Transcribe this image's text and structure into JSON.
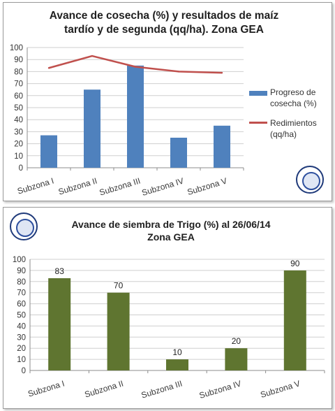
{
  "chart_data": [
    {
      "type": "bar",
      "title": "Avance de cosecha (%) y resultados de maíz tardío y de segunda (qq/ha). Zona GEA",
      "categories": [
        "Subzona I",
        "Subzona II",
        "Subzona III",
        "Subzona IV",
        "Subzona V"
      ],
      "series": [
        {
          "name": "Progreso de cosecha (%)",
          "type": "bar",
          "color": "#4f81bd",
          "values": [
            27,
            65,
            85,
            25,
            35
          ]
        },
        {
          "name": "Redimientos (qq/ha)",
          "type": "line",
          "color": "#c0504d",
          "values": [
            83,
            93,
            84,
            80,
            79
          ]
        }
      ],
      "ylim": [
        0,
        100
      ],
      "yticks": [
        0,
        10,
        20,
        30,
        40,
        50,
        60,
        70,
        80,
        90,
        100
      ],
      "grid": true,
      "legend_position": "right"
    },
    {
      "type": "bar",
      "title": "Avance de siembra de Trigo  (%) al 26/06/14 Zona GEA",
      "categories": [
        "Subzona I",
        "Subzona II",
        "Subzona III",
        "Subzona IV",
        "Subzona V"
      ],
      "values": [
        83,
        70,
        10,
        20,
        90
      ],
      "color": "#5f7530",
      "ylim": [
        0,
        100
      ],
      "yticks": [
        0,
        10,
        20,
        30,
        40,
        50,
        60,
        70,
        80,
        90,
        100
      ],
      "grid": true,
      "data_labels": true
    }
  ],
  "panel1": {
    "title_line1": "Avance de cosecha (%) y resultados de maíz",
    "title_line2": "tardío y de segunda (qq/ha). Zona GEA",
    "legend_bar_line1": "Progreso de",
    "legend_bar_line2": "cosecha (%)",
    "legend_line_line1": "Redimientos",
    "legend_line_line2": "(qq/ha)",
    "logo_icon": "institution-seal-icon"
  },
  "panel2": {
    "title_line1": "Avance de siembra de Trigo  (%) al 26/06/14",
    "title_line2": "Zona GEA",
    "logo_icon": "institution-seal-icon"
  }
}
